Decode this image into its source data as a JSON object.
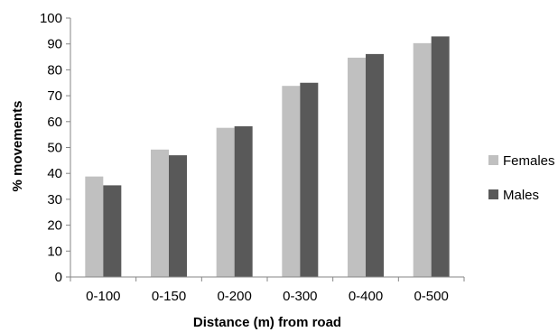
{
  "chart_data": {
    "type": "bar",
    "title": "",
    "xlabel": "Distance (m) from road",
    "ylabel": "% movements",
    "categories": [
      "0-100",
      "0-150",
      "0-200",
      "0-300",
      "0-400",
      "0-500"
    ],
    "series": [
      {
        "name": "Females",
        "values": [
          38.8,
          49.2,
          57.6,
          73.8,
          84.7,
          90.3
        ],
        "color": "#c0c0c0"
      },
      {
        "name": "Males",
        "values": [
          35.4,
          47.0,
          58.2,
          75.0,
          86.1,
          92.9
        ],
        "color": "#595959"
      }
    ],
    "ylim": [
      0,
      100
    ],
    "yticks": [
      "0",
      "10",
      "20",
      "30",
      "40",
      "50",
      "60",
      "70",
      "80",
      "90",
      "100"
    ],
    "grid": false,
    "legend_position": "right"
  }
}
